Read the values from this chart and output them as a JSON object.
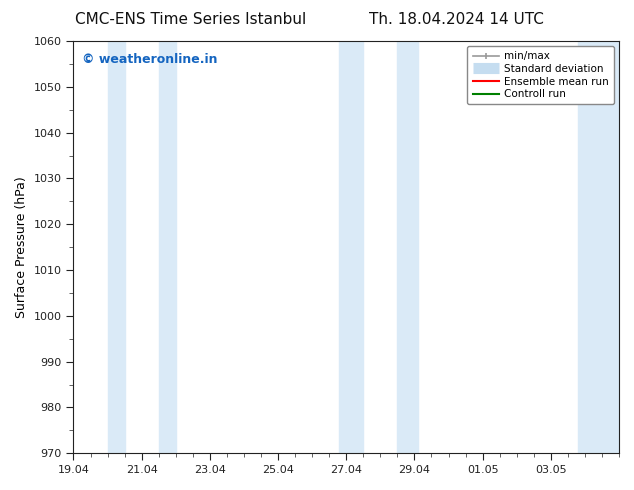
{
  "title_left": "CMC-ENS Time Series Istanbul",
  "title_right": "Th. 18.04.2024 14 UTC",
  "ylabel": "Surface Pressure (hPa)",
  "ylim": [
    970,
    1060
  ],
  "yticks": [
    970,
    980,
    990,
    1000,
    1010,
    1020,
    1030,
    1040,
    1050,
    1060
  ],
  "xtick_labels": [
    "19.04",
    "21.04",
    "23.04",
    "25.04",
    "27.04",
    "29.04",
    "01.05",
    "03.05"
  ],
  "xtick_positions": [
    0,
    2,
    4,
    6,
    8,
    10,
    12,
    14
  ],
  "watermark": "© weatheronline.in",
  "watermark_color": "#1565C0",
  "bg_color": "#ffffff",
  "plot_bg_color": "#ffffff",
  "shaded_bands": [
    {
      "x_start": 1.0,
      "x_end": 1.5,
      "color": "#daeaf7"
    },
    {
      "x_start": 2.5,
      "x_end": 3.0,
      "color": "#daeaf7"
    },
    {
      "x_start": 7.8,
      "x_end": 8.5,
      "color": "#daeaf7"
    },
    {
      "x_start": 9.5,
      "x_end": 10.1,
      "color": "#daeaf7"
    },
    {
      "x_start": 14.8,
      "x_end": 16.0,
      "color": "#daeaf7"
    }
  ],
  "xlim": [
    0,
    16
  ],
  "num_minor_ticks": 4,
  "legend_items": [
    {
      "label": "min/max",
      "color": "#aaaaaa",
      "lw": 1.2
    },
    {
      "label": "Standard deviation",
      "color": "#c5ddf0",
      "lw": 8
    },
    {
      "label": "Ensemble mean run",
      "color": "#ff0000",
      "lw": 1.5
    },
    {
      "label": "Controll run",
      "color": "#008000",
      "lw": 1.5
    }
  ],
  "title_fontsize": 11,
  "label_fontsize": 9,
  "tick_fontsize": 8
}
